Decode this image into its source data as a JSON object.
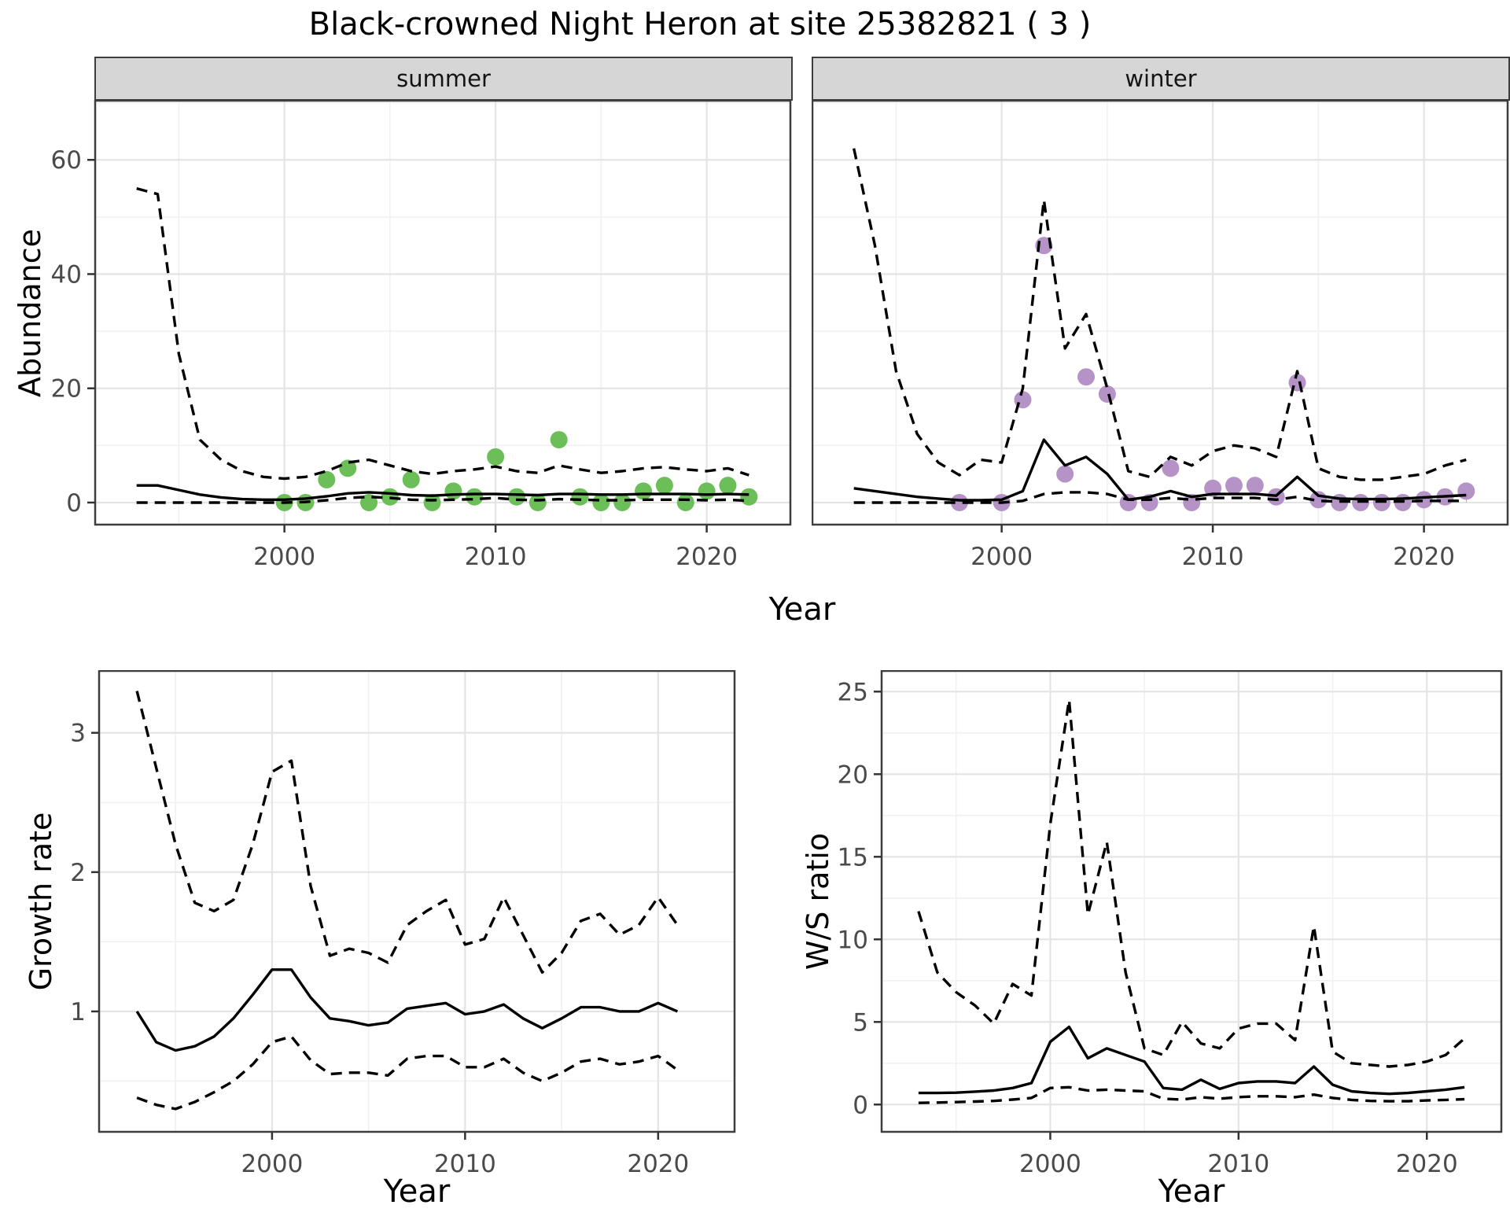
{
  "title": "Black-crowned Night Heron at site 25382821 ( 3 )",
  "facets": {
    "summer_label": "summer",
    "winter_label": "winter"
  },
  "axis_labels": {
    "abundance": "Abundance",
    "year": "Year",
    "growth_rate": "Growth rate",
    "ws_ratio": "W/S ratio"
  },
  "colors": {
    "summer_point": "#6cbe59",
    "winter_point": "#b593c7",
    "line": "#000000",
    "grid_major": "#e4e4e4",
    "grid_minor": "#f1f1f1",
    "panel_border": "#3d3d3d",
    "tick_mark": "#333333",
    "tick_label": "#4a4a4a",
    "strip_bg": "#d6d6d6"
  },
  "chart_data": [
    {
      "id": "abundance-summer",
      "type": "line",
      "facet": "summer",
      "xlabel": "Year",
      "ylabel": "Abundance",
      "xlim": [
        1991,
        2024
      ],
      "ylim": [
        -4,
        70.5
      ],
      "xticks": [
        2000,
        2010,
        2020
      ],
      "xminor": [
        1995,
        2005,
        2015
      ],
      "yticks": [
        0,
        20,
        40,
        60
      ],
      "yminor": [
        10,
        30,
        50,
        70
      ],
      "x": [
        1993,
        1994,
        1995,
        1996,
        1997,
        1998,
        1999,
        2000,
        2001,
        2002,
        2003,
        2004,
        2005,
        2006,
        2007,
        2008,
        2009,
        2010,
        2011,
        2012,
        2013,
        2014,
        2015,
        2016,
        2017,
        2018,
        2019,
        2020,
        2021,
        2022
      ],
      "series": [
        {
          "name": "upper_ci",
          "style": "dashed",
          "values": [
            55,
            54,
            26,
            11,
            7.5,
            5.5,
            4.5,
            4.2,
            4.5,
            5.5,
            7.0,
            7.5,
            6.5,
            5.5,
            5.0,
            5.5,
            5.8,
            6.3,
            5.5,
            5.2,
            6.5,
            5.8,
            5.2,
            5.5,
            6.0,
            6.2,
            5.8,
            5.5,
            6.0,
            4.8
          ]
        },
        {
          "name": "median",
          "style": "solid",
          "values": [
            3.0,
            3.0,
            2.2,
            1.4,
            0.9,
            0.6,
            0.5,
            0.5,
            0.7,
            1.1,
            1.6,
            1.8,
            1.6,
            1.3,
            1.2,
            1.4,
            1.5,
            1.5,
            1.4,
            1.3,
            1.5,
            1.5,
            1.4,
            1.4,
            1.5,
            1.5,
            1.5,
            1.4,
            1.5,
            1.4
          ]
        },
        {
          "name": "lower_ci",
          "style": "dashed",
          "values": [
            0,
            0,
            0,
            0,
            0,
            0,
            0,
            0,
            0.1,
            0.4,
            0.8,
            1.0,
            0.8,
            0.5,
            0.4,
            0.5,
            0.6,
            0.8,
            0.5,
            0.4,
            0.6,
            0.5,
            0.4,
            0.4,
            0.5,
            0.5,
            0.5,
            0.4,
            0.5,
            0.3
          ]
        }
      ],
      "points": {
        "name": "observed-abundance",
        "color_key": "summer_point",
        "xy": [
          [
            2000,
            0
          ],
          [
            2001,
            0
          ],
          [
            2002,
            4
          ],
          [
            2003,
            6
          ],
          [
            2004,
            0
          ],
          [
            2005,
            1
          ],
          [
            2006,
            4
          ],
          [
            2007,
            0
          ],
          [
            2008,
            2
          ],
          [
            2009,
            1
          ],
          [
            2010,
            8
          ],
          [
            2011,
            1
          ],
          [
            2012,
            0
          ],
          [
            2013,
            11
          ],
          [
            2014,
            1
          ],
          [
            2015,
            0
          ],
          [
            2016,
            0
          ],
          [
            2017,
            2
          ],
          [
            2018,
            3
          ],
          [
            2019,
            0
          ],
          [
            2020,
            2
          ],
          [
            2021,
            3
          ],
          [
            2022,
            1
          ]
        ]
      }
    },
    {
      "id": "abundance-winter",
      "type": "line",
      "facet": "winter",
      "xlabel": "Year",
      "ylabel": "Abundance",
      "xlim": [
        1991,
        2024
      ],
      "ylim": [
        -4,
        70.5
      ],
      "xticks": [
        2000,
        2010,
        2020
      ],
      "xminor": [
        1995,
        2005,
        2015
      ],
      "yticks": [
        0,
        20,
        40,
        60
      ],
      "yminor": [
        10,
        30,
        50,
        70
      ],
      "x": [
        1993,
        1994,
        1995,
        1996,
        1997,
        1998,
        1999,
        2000,
        2001,
        2002,
        2003,
        2004,
        2005,
        2006,
        2007,
        2008,
        2009,
        2010,
        2011,
        2012,
        2013,
        2014,
        2015,
        2016,
        2017,
        2018,
        2019,
        2020,
        2021,
        2022
      ],
      "series": [
        {
          "name": "upper_ci",
          "style": "dashed",
          "values": [
            62,
            45,
            23,
            12,
            7,
            4.8,
            7.5,
            7,
            20,
            53,
            27,
            33,
            20,
            5.5,
            4.5,
            8,
            6.5,
            9,
            10,
            9.5,
            8,
            23,
            6,
            4.5,
            4,
            4,
            4.5,
            5,
            6.5,
            7.5
          ]
        },
        {
          "name": "median",
          "style": "solid",
          "values": [
            2.5,
            2.0,
            1.5,
            1.0,
            0.7,
            0.4,
            0.4,
            0.5,
            2.0,
            11,
            6.5,
            8,
            5,
            0.5,
            1.0,
            2.0,
            1.0,
            1.5,
            1.5,
            1.5,
            1.2,
            4.5,
            1.2,
            0.7,
            0.6,
            0.6,
            0.7,
            0.9,
            1.1,
            1.3
          ]
        },
        {
          "name": "lower_ci",
          "style": "dashed",
          "values": [
            0,
            0,
            0,
            0,
            0,
            0,
            0,
            0,
            0.3,
            1.5,
            1.8,
            1.8,
            1.5,
            0.5,
            0.5,
            0.8,
            0.5,
            0.8,
            0.8,
            0.8,
            0.5,
            1.0,
            0.3,
            0.2,
            0.2,
            0.2,
            0.2,
            0.3,
            0.3,
            0.3
          ]
        }
      ],
      "points": {
        "name": "observed-abundance",
        "color_key": "winter_point",
        "xy": [
          [
            1998,
            0
          ],
          [
            2000,
            0
          ],
          [
            2001,
            18
          ],
          [
            2002,
            45
          ],
          [
            2003,
            5
          ],
          [
            2004,
            22
          ],
          [
            2005,
            19
          ],
          [
            2006,
            0
          ],
          [
            2007,
            0
          ],
          [
            2008,
            6
          ],
          [
            2009,
            0
          ],
          [
            2010,
            2.5
          ],
          [
            2011,
            3
          ],
          [
            2012,
            3
          ],
          [
            2013,
            1
          ],
          [
            2014,
            21
          ],
          [
            2015,
            0.5
          ],
          [
            2016,
            0
          ],
          [
            2017,
            0
          ],
          [
            2018,
            0
          ],
          [
            2019,
            0
          ],
          [
            2020,
            0.5
          ],
          [
            2021,
            1
          ],
          [
            2022,
            2
          ]
        ]
      }
    },
    {
      "id": "growth-rate",
      "type": "line",
      "xlabel": "Year",
      "ylabel": "Growth rate",
      "xlim": [
        1991,
        2024
      ],
      "ylim": [
        0.13,
        3.45
      ],
      "xticks": [
        2000,
        2010,
        2020
      ],
      "xminor": [
        1995,
        2005,
        2015
      ],
      "yticks": [
        1,
        2,
        3
      ],
      "yminor": [
        0.5,
        1.5,
        2.5
      ],
      "x": [
        1993,
        1994,
        1995,
        1996,
        1997,
        1998,
        1999,
        2000,
        2001,
        2002,
        2003,
        2004,
        2005,
        2006,
        2007,
        2008,
        2009,
        2010,
        2011,
        2012,
        2013,
        2014,
        2015,
        2016,
        2017,
        2018,
        2019,
        2020,
        2021
      ],
      "series": [
        {
          "name": "upper_ci",
          "style": "dashed",
          "values": [
            3.3,
            2.75,
            2.2,
            1.78,
            1.72,
            1.8,
            2.2,
            2.72,
            2.8,
            1.9,
            1.4,
            1.45,
            1.42,
            1.35,
            1.62,
            1.72,
            1.8,
            1.48,
            1.52,
            1.82,
            1.55,
            1.28,
            1.42,
            1.65,
            1.7,
            1.55,
            1.62,
            1.82,
            1.62
          ]
        },
        {
          "name": "median",
          "style": "solid",
          "values": [
            1.0,
            0.78,
            0.72,
            0.75,
            0.82,
            0.95,
            1.12,
            1.3,
            1.3,
            1.1,
            0.95,
            0.93,
            0.9,
            0.92,
            1.02,
            1.04,
            1.06,
            0.98,
            1.0,
            1.05,
            0.95,
            0.88,
            0.95,
            1.03,
            1.03,
            1.0,
            1.0,
            1.06,
            1.0
          ]
        },
        {
          "name": "lower_ci",
          "style": "dashed",
          "values": [
            0.38,
            0.33,
            0.3,
            0.35,
            0.42,
            0.5,
            0.62,
            0.78,
            0.82,
            0.65,
            0.55,
            0.56,
            0.56,
            0.54,
            0.66,
            0.68,
            0.68,
            0.6,
            0.6,
            0.66,
            0.56,
            0.5,
            0.56,
            0.64,
            0.66,
            0.62,
            0.64,
            0.68,
            0.58
          ]
        }
      ]
    },
    {
      "id": "ws-ratio",
      "type": "line",
      "xlabel": "Year",
      "ylabel": "W/S ratio",
      "xlim": [
        1991,
        2024
      ],
      "ylim": [
        -1.7,
        26.3
      ],
      "xticks": [
        2000,
        2010,
        2020
      ],
      "xminor": [
        1995,
        2005,
        2015
      ],
      "yticks": [
        0,
        5,
        10,
        15,
        20,
        25
      ],
      "yminor": [
        2.5,
        7.5,
        12.5,
        17.5,
        22.5
      ],
      "x": [
        1993,
        1994,
        1995,
        1996,
        1997,
        1998,
        1999,
        2000,
        2001,
        2002,
        2003,
        2004,
        2005,
        2006,
        2007,
        2008,
        2009,
        2010,
        2011,
        2012,
        2013,
        2014,
        2015,
        2016,
        2017,
        2018,
        2019,
        2020,
        2021,
        2022
      ],
      "series": [
        {
          "name": "upper_ci",
          "style": "dashed",
          "values": [
            11.7,
            8.0,
            6.8,
            6.0,
            4.9,
            7.3,
            6.6,
            17.0,
            24.5,
            11.5,
            15.9,
            8.0,
            3.4,
            3.0,
            5.0,
            3.7,
            3.4,
            4.6,
            4.9,
            4.9,
            3.9,
            10.8,
            3.2,
            2.5,
            2.4,
            2.3,
            2.4,
            2.6,
            3.0,
            4.0
          ]
        },
        {
          "name": "median",
          "style": "solid",
          "values": [
            0.7,
            0.7,
            0.72,
            0.78,
            0.85,
            1.0,
            1.3,
            3.8,
            4.7,
            2.8,
            3.4,
            3.0,
            2.6,
            1.0,
            0.9,
            1.5,
            0.95,
            1.3,
            1.4,
            1.4,
            1.3,
            2.3,
            1.2,
            0.8,
            0.7,
            0.65,
            0.7,
            0.8,
            0.9,
            1.05
          ]
        },
        {
          "name": "lower_ci",
          "style": "dashed",
          "values": [
            0.1,
            0.12,
            0.15,
            0.18,
            0.22,
            0.3,
            0.4,
            1.0,
            1.05,
            0.85,
            0.9,
            0.85,
            0.8,
            0.35,
            0.3,
            0.45,
            0.35,
            0.45,
            0.5,
            0.5,
            0.45,
            0.6,
            0.4,
            0.28,
            0.22,
            0.2,
            0.2,
            0.25,
            0.28,
            0.32
          ]
        }
      ]
    }
  ]
}
